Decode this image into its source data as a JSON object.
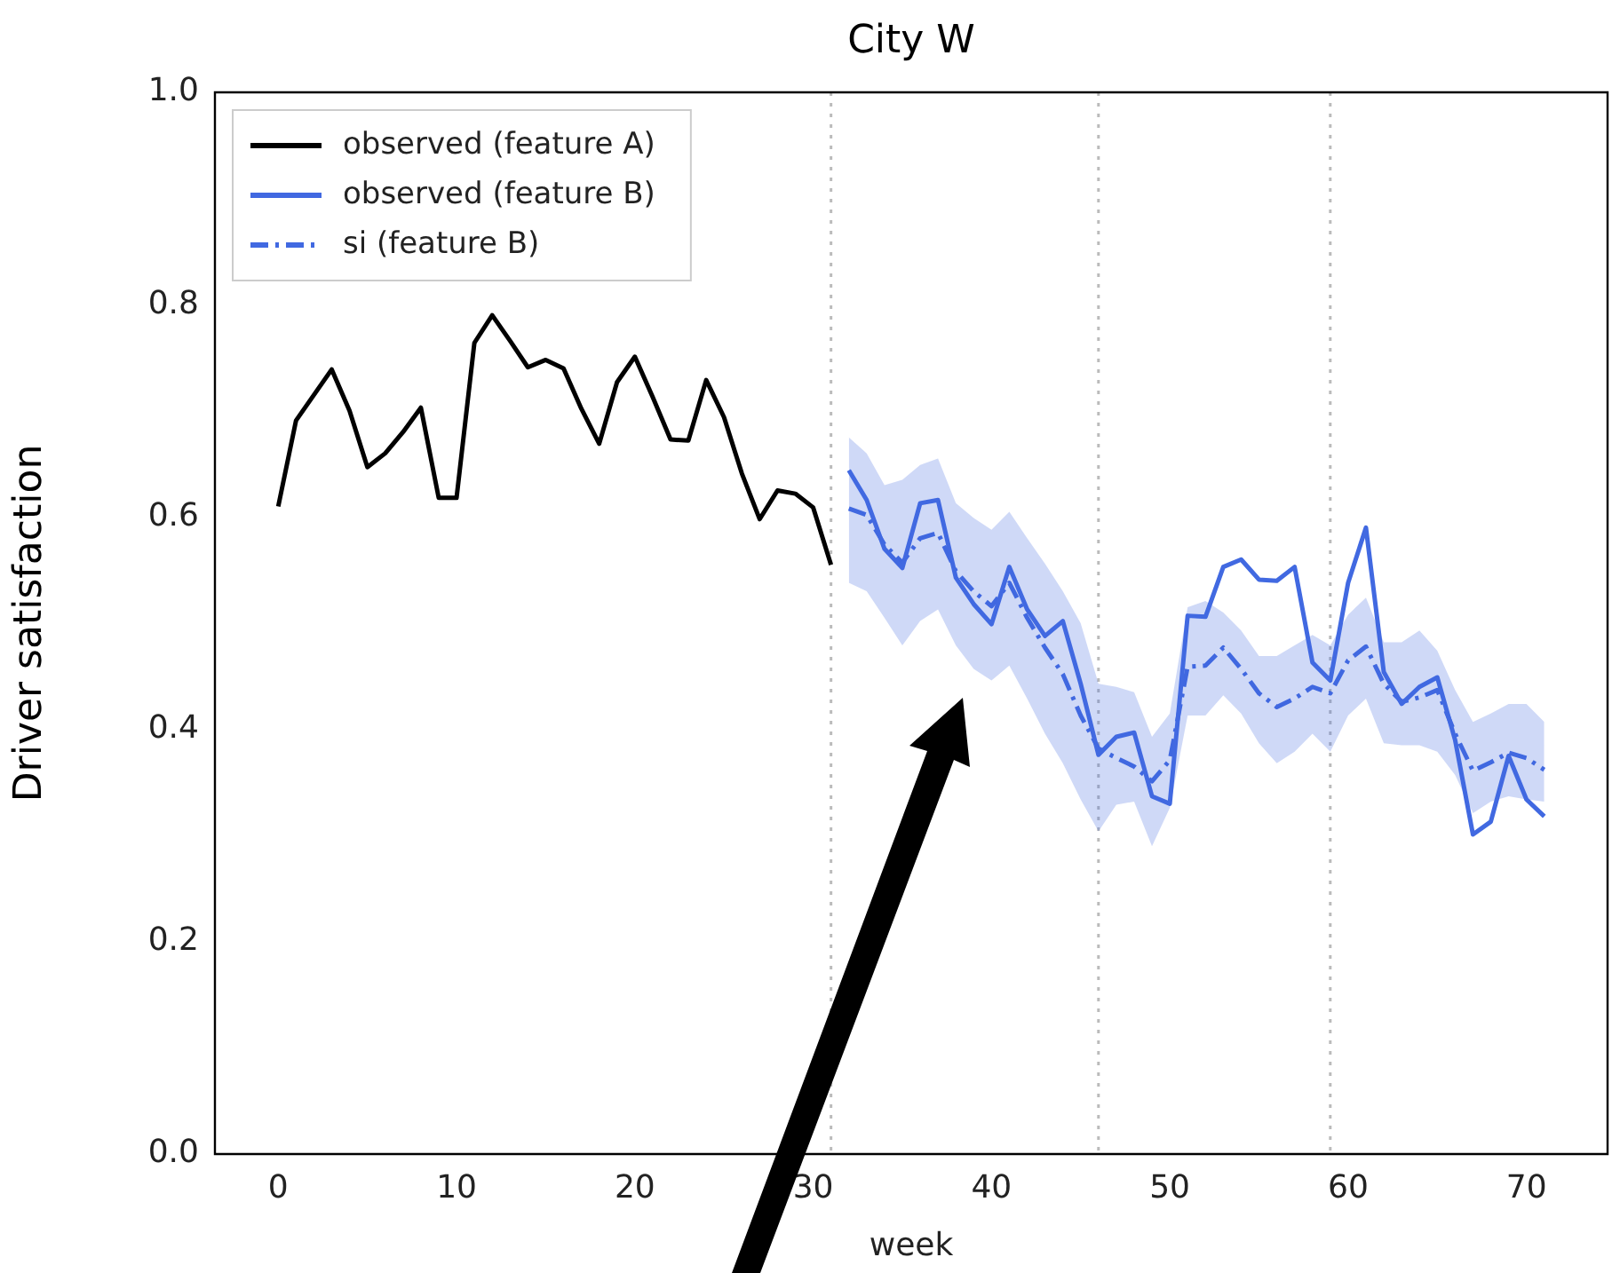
{
  "chart_data": {
    "type": "line",
    "title": "City W",
    "xlabel": "week",
    "ylabel": "Driver satisfaction",
    "xlim": [
      -3.55,
      74.55
    ],
    "xticks": [
      0,
      10,
      20,
      30,
      40,
      50,
      60,
      70
    ],
    "ylim": [
      0,
      1
    ],
    "yticks": [
      {
        "value": 0,
        "label": "0.0"
      },
      {
        "value": 0.2,
        "label": "0.2"
      },
      {
        "value": 0.4,
        "label": "0.4"
      },
      {
        "value": 0.6,
        "label": "0.6"
      },
      {
        "value": 0.8,
        "label": "0.8"
      },
      {
        "value": 1,
        "label": "1.0"
      }
    ],
    "grid": false,
    "legend": "top left",
    "marker": "none",
    "ref_lines": [
      {
        "axis": "x",
        "value": 31,
        "color": "#bbbbbb",
        "line_style": "dotted"
      },
      {
        "axis": "x",
        "value": 46,
        "color": "#bbbbbb",
        "line_style": "dotted"
      },
      {
        "axis": "x",
        "value": 59,
        "color": "#bbbbbb",
        "line_style": "dotted"
      }
    ],
    "series": [
      {
        "name": "observed (feature A)",
        "color": "#000000",
        "line_style": "solid",
        "x": [
          0,
          1,
          2,
          3,
          4,
          5,
          6,
          7,
          8,
          9,
          10,
          11,
          12,
          13,
          14,
          15,
          16,
          17,
          18,
          19,
          20,
          21,
          22,
          23,
          24,
          25,
          26,
          27,
          28,
          29,
          30,
          31
        ],
        "values": [
          0.61,
          0.691,
          0.715,
          0.739,
          0.7,
          0.647,
          0.66,
          0.68,
          0.703,
          0.618,
          0.618,
          0.764,
          0.79,
          0.766,
          0.741,
          0.748,
          0.74,
          0.702,
          0.669,
          0.727,
          0.751,
          0.713,
          0.673,
          0.672,
          0.729,
          0.694,
          0.641,
          0.598,
          0.625,
          0.622,
          0.609,
          0.555
        ]
      },
      {
        "name": "observed (feature B)",
        "color": "#4169e1",
        "line_style": "solid",
        "x": [
          32,
          33,
          34,
          35,
          36,
          37,
          38,
          39,
          40,
          41,
          42,
          43,
          44,
          45,
          46,
          47,
          48,
          49,
          50,
          51,
          52,
          53,
          54,
          55,
          56,
          57,
          58,
          59,
          60,
          61,
          62,
          63,
          64,
          65,
          66,
          67,
          68,
          69,
          70,
          71
        ],
        "values": [
          0.644,
          0.616,
          0.57,
          0.552,
          0.613,
          0.616,
          0.543,
          0.518,
          0.499,
          0.553,
          0.513,
          0.488,
          0.502,
          0.443,
          0.376,
          0.393,
          0.397,
          0.337,
          0.33,
          0.507,
          0.506,
          0.553,
          0.56,
          0.541,
          0.54,
          0.553,
          0.463,
          0.446,
          0.538,
          0.59,
          0.454,
          0.424,
          0.44,
          0.449,
          0.39,
          0.301,
          0.313,
          0.375,
          0.334,
          0.318
        ]
      },
      {
        "name": "si (feature B)",
        "color": "#4169e1",
        "line_style": "dashed",
        "x": [
          32,
          33,
          34,
          35,
          36,
          37,
          38,
          39,
          40,
          41,
          42,
          43,
          44,
          45,
          46,
          47,
          48,
          49,
          50,
          51,
          52,
          53,
          54,
          55,
          56,
          57,
          58,
          59,
          60,
          61,
          62,
          63,
          64,
          65,
          66,
          67,
          68,
          69,
          70,
          71
        ],
        "values": [
          0.608,
          0.602,
          0.574,
          0.557,
          0.58,
          0.585,
          0.549,
          0.53,
          0.516,
          0.538,
          0.505,
          0.477,
          0.452,
          0.413,
          0.382,
          0.373,
          0.365,
          0.351,
          0.371,
          0.459,
          0.46,
          0.477,
          0.457,
          0.434,
          0.421,
          0.429,
          0.44,
          0.434,
          0.465,
          0.478,
          0.443,
          0.426,
          0.43,
          0.437,
          0.396,
          0.361,
          0.369,
          0.378,
          0.373,
          0.362
        ],
        "lower": [
          0.538,
          0.53,
          0.505,
          0.479,
          0.502,
          0.513,
          0.479,
          0.457,
          0.446,
          0.46,
          0.429,
          0.396,
          0.368,
          0.334,
          0.304,
          0.329,
          0.332,
          0.29,
          0.326,
          0.413,
          0.413,
          0.432,
          0.415,
          0.387,
          0.368,
          0.379,
          0.396,
          0.379,
          0.413,
          0.429,
          0.387,
          0.385,
          0.385,
          0.379,
          0.357,
          0.321,
          0.332,
          0.337,
          0.334,
          0.332
        ],
        "upper": [
          0.675,
          0.66,
          0.63,
          0.635,
          0.649,
          0.655,
          0.613,
          0.599,
          0.588,
          0.605,
          0.58,
          0.556,
          0.53,
          0.5,
          0.443,
          0.44,
          0.435,
          0.393,
          0.415,
          0.515,
          0.521,
          0.51,
          0.493,
          0.469,
          0.469,
          0.479,
          0.489,
          0.479,
          0.508,
          0.524,
          0.482,
          0.482,
          0.493,
          0.474,
          0.437,
          0.407,
          0.415,
          0.424,
          0.424,
          0.407
        ]
      }
    ]
  }
}
